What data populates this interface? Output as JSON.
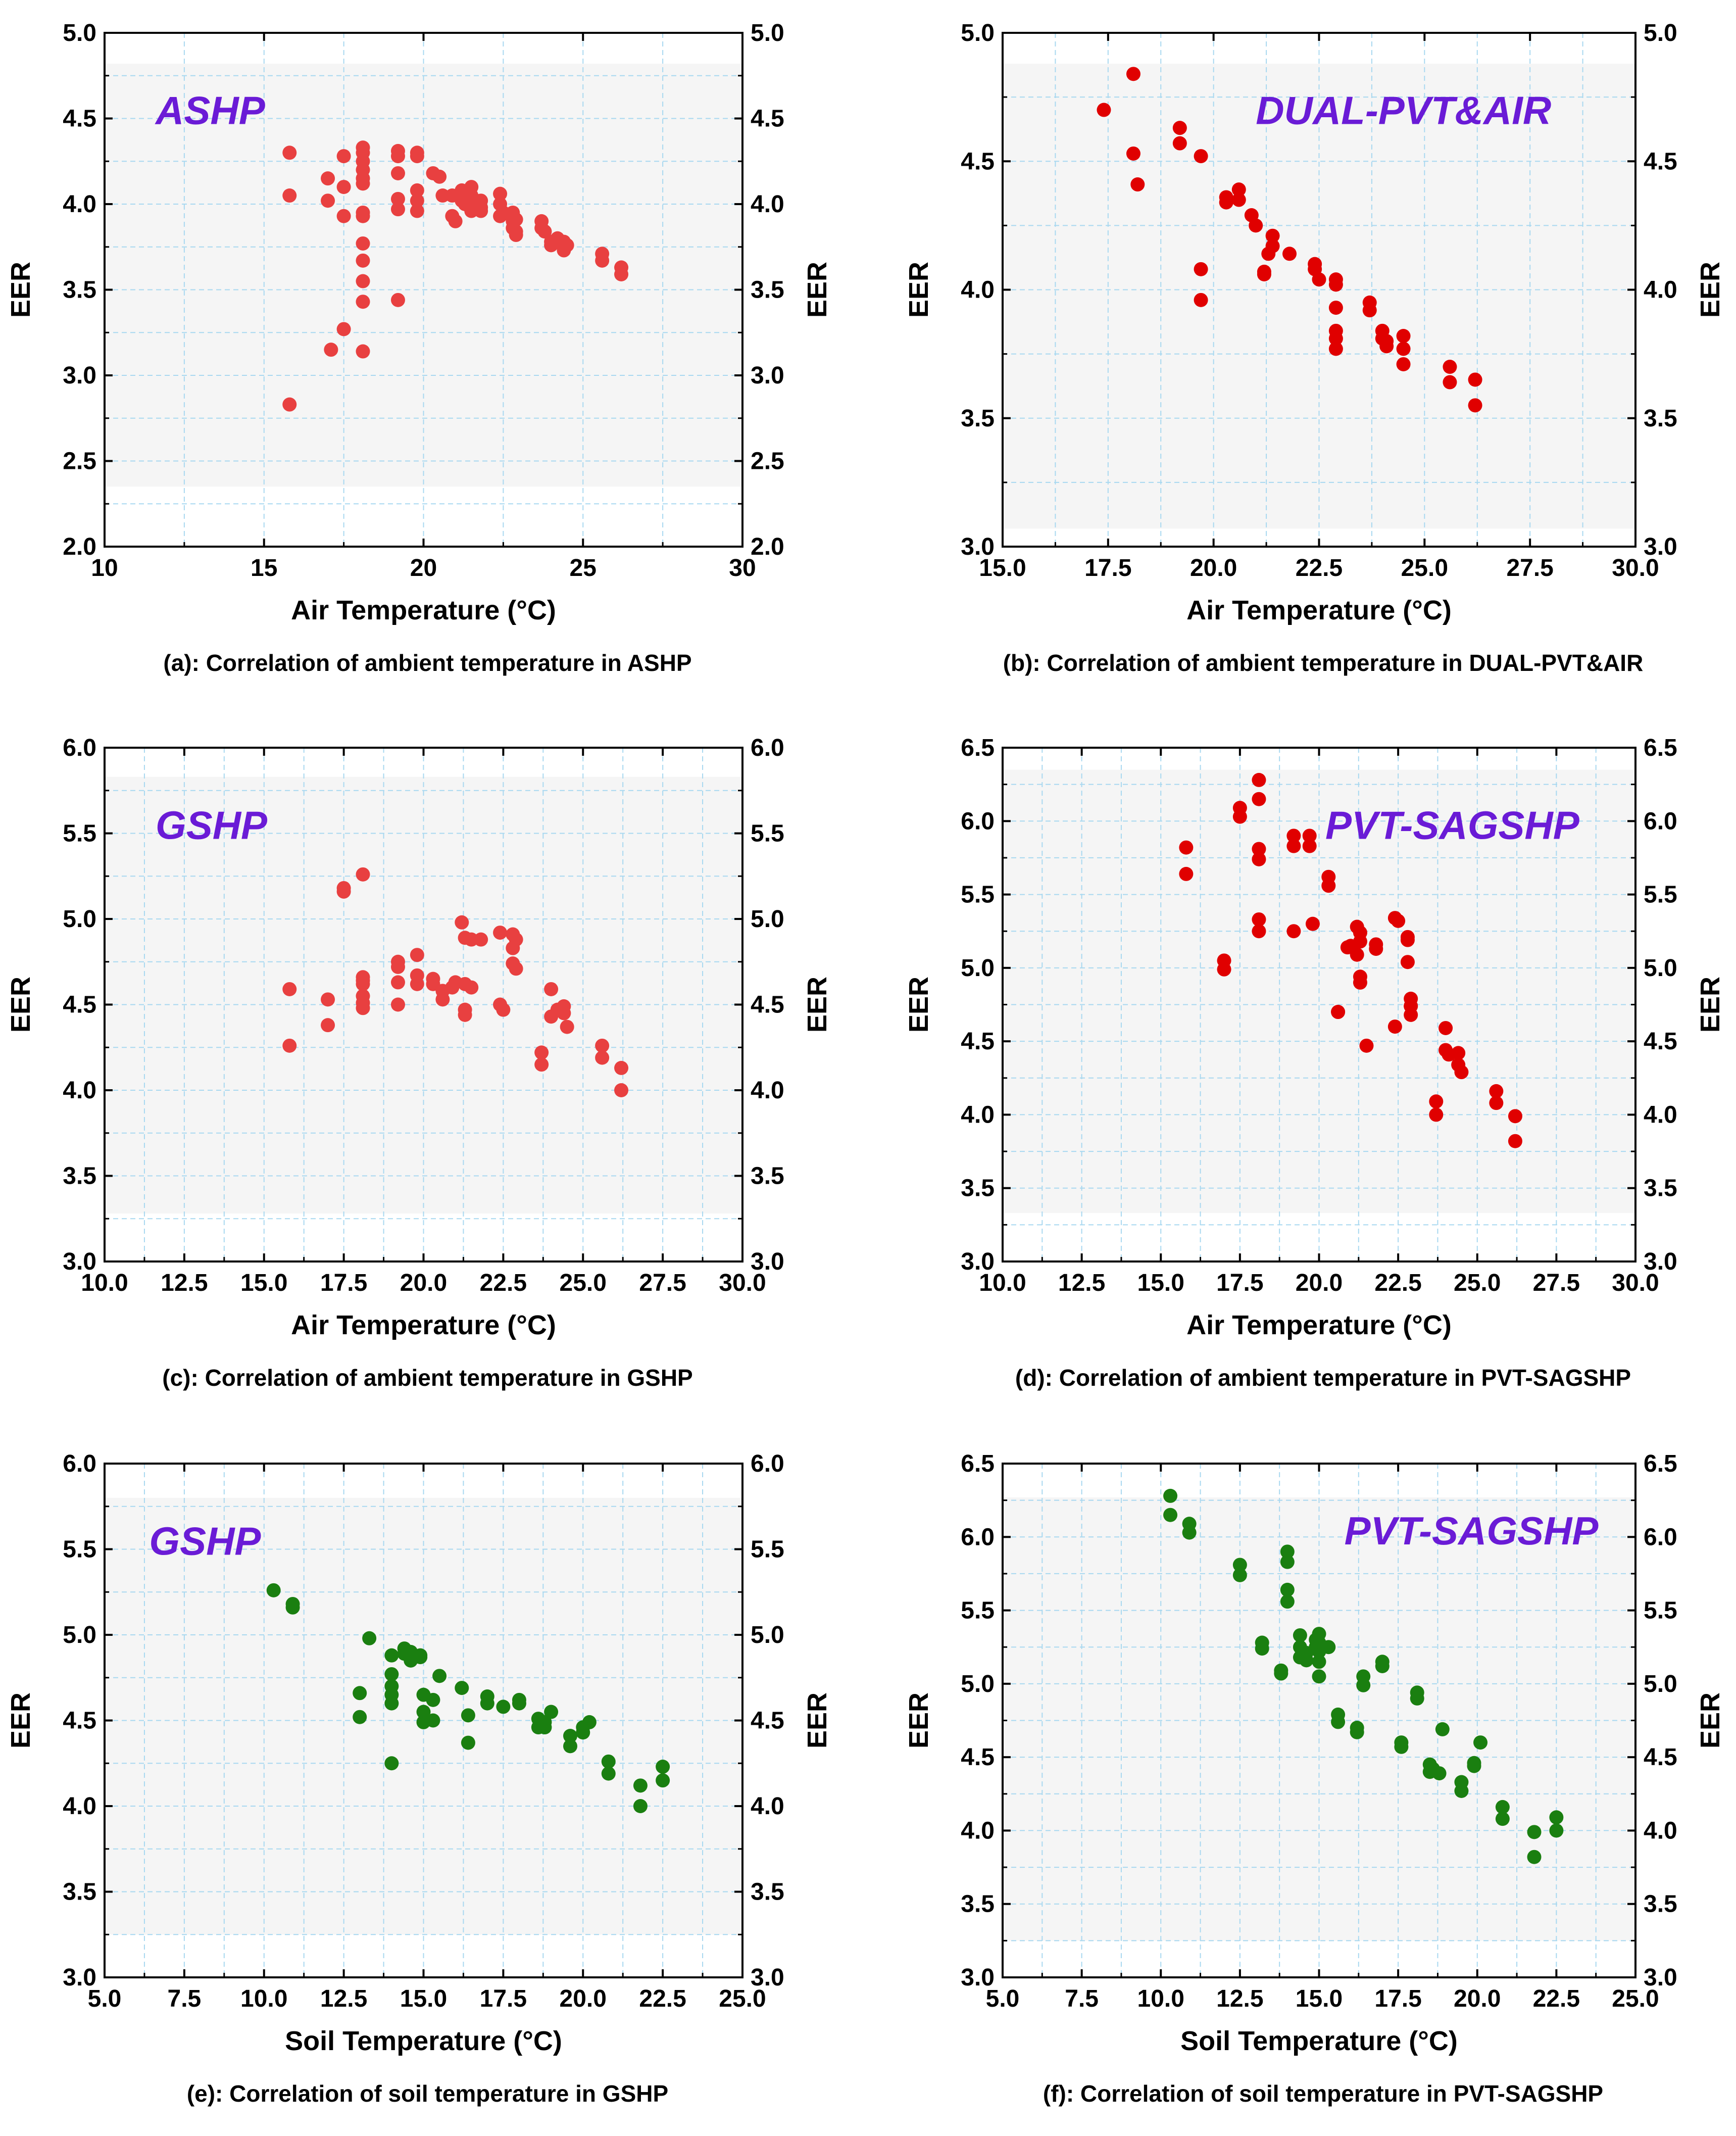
{
  "figure": {
    "colors": {
      "air_points": "#e84040",
      "dual_points": "#e00000",
      "pvt_points": "#e00000",
      "soil_points": "#1a7f10",
      "panel_label": "#6a1bd6",
      "grid": "#a8d8f0",
      "band": "#f5f5f5"
    }
  },
  "chart_data": [
    {
      "id": "a",
      "type": "scatter",
      "panel_label": "ASHP",
      "caption": "(a): Correlation of ambient temperature in ASHP",
      "xlabel": "Air Temperature (°C)",
      "ylabel": "EER",
      "ylabel_right": "EER",
      "xlim": [
        10,
        30
      ],
      "ylim": [
        2.0,
        5.0
      ],
      "xticks": [
        "10",
        "15",
        "20",
        "25",
        "30"
      ],
      "yticks": [
        "2.0",
        "2.5",
        "3.0",
        "3.5",
        "4.0",
        "4.5",
        "5.0"
      ],
      "band": [
        2.35,
        4.82
      ],
      "x": [
        15.8,
        15.8,
        15.8,
        17.0,
        17.0,
        17.1,
        17.5,
        17.5,
        17.5,
        17.5,
        18.1,
        18.1,
        18.1,
        18.1,
        18.1,
        18.1,
        18.1,
        18.1,
        18.1,
        18.1,
        18.1,
        18.1,
        18.1,
        19.2,
        19.2,
        19.2,
        19.2,
        19.2,
        19.2,
        19.8,
        19.8,
        19.8,
        19.8,
        19.8,
        20.3,
        20.5,
        20.6,
        20.9,
        20.9,
        21.0,
        21.2,
        21.2,
        21.3,
        21.3,
        21.5,
        21.5,
        21.5,
        21.5,
        21.8,
        21.8,
        21.8,
        22.4,
        22.4,
        22.4,
        22.5,
        22.8,
        22.8,
        22.8,
        22.9,
        22.9,
        22.9,
        23.7,
        23.7,
        23.8,
        24.0,
        24.0,
        24.1,
        24.2,
        24.4,
        24.4,
        24.4,
        24.5,
        25.6,
        25.6,
        26.2,
        26.2
      ],
      "y": [
        4.3,
        4.05,
        2.83,
        4.15,
        4.02,
        3.15,
        4.28,
        4.1,
        3.93,
        3.27,
        4.33,
        4.3,
        4.25,
        4.15,
        4.12,
        3.95,
        3.77,
        3.67,
        3.55,
        3.43,
        3.14,
        3.93,
        4.2,
        4.31,
        4.28,
        4.18,
        4.03,
        3.97,
        3.44,
        4.3,
        4.28,
        4.08,
        4.02,
        3.96,
        4.18,
        4.16,
        4.05,
        4.05,
        3.93,
        3.9,
        4.08,
        4.02,
        4.0,
        4.05,
        4.1,
        4.05,
        4.0,
        3.96,
        4.02,
        3.98,
        3.96,
        4.06,
        4.0,
        3.93,
        3.95,
        3.95,
        3.9,
        3.86,
        3.84,
        3.91,
        3.82,
        3.9,
        3.86,
        3.84,
        3.78,
        3.76,
        3.78,
        3.8,
        3.78,
        3.75,
        3.73,
        3.76,
        3.71,
        3.67,
        3.63,
        3.59
      ],
      "series_color": "air_points"
    },
    {
      "id": "b",
      "type": "scatter",
      "panel_label": "DUAL-PVT&AIR",
      "caption": "(b): Correlation of ambient temperature in DUAL-PVT&AIR",
      "xlabel": "Air Temperature (°C)",
      "ylabel": "EER",
      "ylabel_right": "EER",
      "xlim": [
        15.0,
        30.0
      ],
      "ylim": [
        3.0,
        5.0
      ],
      "xticks": [
        "15.0",
        "17.5",
        "20.0",
        "22.5",
        "25.0",
        "27.5",
        "30.0"
      ],
      "yticks": [
        "3.0",
        "3.5",
        "4.0",
        "4.5",
        "5.0"
      ],
      "band": [
        3.07,
        4.88
      ],
      "x": [
        17.4,
        18.1,
        18.1,
        18.2,
        19.2,
        19.2,
        19.7,
        19.7,
        19.7,
        20.3,
        20.3,
        20.6,
        20.6,
        20.9,
        21.0,
        21.2,
        21.2,
        21.3,
        21.4,
        21.4,
        21.8,
        22.4,
        22.4,
        22.5,
        22.9,
        22.9,
        22.9,
        22.9,
        22.9,
        22.9,
        23.7,
        23.7,
        24.0,
        24.0,
        24.1,
        24.1,
        24.5,
        24.5,
        24.5,
        25.6,
        25.6,
        26.2,
        26.2
      ],
      "y": [
        4.7,
        4.84,
        4.53,
        4.41,
        4.63,
        4.57,
        4.52,
        4.08,
        3.96,
        4.36,
        4.34,
        4.39,
        4.35,
        4.29,
        4.25,
        4.06,
        4.07,
        4.14,
        4.21,
        4.17,
        4.14,
        4.1,
        4.08,
        4.04,
        4.04,
        4.02,
        3.93,
        3.84,
        3.81,
        3.77,
        3.95,
        3.92,
        3.84,
        3.81,
        3.8,
        3.78,
        3.82,
        3.77,
        3.71,
        3.7,
        3.64,
        3.65,
        3.55
      ],
      "series_color": "dual_points"
    },
    {
      "id": "c",
      "type": "scatter",
      "panel_label": "GSHP",
      "caption": "(c): Correlation of ambient temperature in GSHP",
      "xlabel": "Air Temperature (°C)",
      "ylabel": "EER",
      "ylabel_right": "EER",
      "xlim": [
        10.0,
        30.0
      ],
      "ylim": [
        3.0,
        6.0
      ],
      "xticks": [
        "10.0",
        "12.5",
        "15.0",
        "17.5",
        "20.0",
        "22.5",
        "25.0",
        "27.5",
        "30.0"
      ],
      "yticks": [
        "3.0",
        "3.5",
        "4.0",
        "4.5",
        "5.0",
        "5.5",
        "6.0"
      ],
      "band": [
        3.28,
        5.83
      ],
      "x": [
        15.8,
        15.8,
        17.0,
        17.0,
        17.5,
        17.5,
        18.1,
        18.1,
        18.1,
        18.1,
        18.1,
        18.1,
        18.1,
        19.2,
        19.2,
        19.2,
        19.2,
        19.8,
        19.8,
        19.8,
        20.3,
        20.3,
        20.6,
        20.6,
        20.9,
        21.0,
        21.2,
        21.3,
        21.3,
        21.3,
        21.3,
        21.5,
        21.5,
        21.8,
        22.4,
        22.4,
        22.5,
        22.8,
        22.8,
        22.8,
        22.9,
        22.9,
        23.7,
        23.7,
        24.0,
        24.0,
        24.2,
        24.4,
        24.4,
        24.5,
        25.6,
        25.6,
        26.2,
        26.2
      ],
      "y": [
        4.59,
        4.26,
        4.53,
        4.38,
        5.18,
        5.16,
        5.26,
        4.66,
        4.62,
        4.55,
        4.51,
        4.48,
        4.64,
        4.75,
        4.72,
        4.63,
        4.5,
        4.79,
        4.67,
        4.62,
        4.65,
        4.62,
        4.58,
        4.53,
        4.6,
        4.63,
        4.98,
        4.89,
        4.62,
        4.47,
        4.44,
        4.88,
        4.6,
        4.88,
        4.92,
        4.5,
        4.47,
        4.91,
        4.83,
        4.74,
        4.71,
        4.88,
        4.22,
        4.15,
        4.59,
        4.43,
        4.47,
        4.49,
        4.45,
        4.37,
        4.26,
        4.19,
        4.13,
        4.0
      ],
      "series_color": "air_points"
    },
    {
      "id": "d",
      "type": "scatter",
      "panel_label": "PVT-SAGSHP",
      "caption": "(d): Correlation of ambient temperature in PVT-SAGSHP",
      "xlabel": "Air Temperature (°C)",
      "ylabel": "EER",
      "ylabel_right": "EER",
      "xlim": [
        10.0,
        30.0
      ],
      "ylim": [
        3.0,
        6.5
      ],
      "xticks": [
        "10.0",
        "12.5",
        "15.0",
        "17.5",
        "20.0",
        "22.5",
        "25.0",
        "27.5",
        "30.0"
      ],
      "yticks": [
        "3.0",
        "3.5",
        "4.0",
        "4.5",
        "5.0",
        "5.5",
        "6.0",
        "6.5"
      ],
      "band": [
        3.33,
        6.35
      ],
      "x": [
        15.8,
        15.8,
        17.0,
        17.0,
        17.5,
        17.5,
        18.1,
        18.1,
        18.1,
        18.1,
        18.1,
        18.1,
        19.2,
        19.2,
        19.2,
        19.7,
        19.7,
        19.8,
        20.3,
        20.3,
        20.6,
        20.6,
        20.9,
        21.0,
        21.2,
        21.2,
        21.3,
        21.3,
        21.3,
        21.3,
        21.5,
        21.8,
        21.8,
        22.4,
        22.4,
        22.5,
        22.8,
        22.8,
        22.8,
        22.9,
        22.9,
        22.9,
        22.9,
        23.7,
        23.7,
        24.0,
        24.0,
        24.1,
        24.4,
        24.4,
        24.5,
        25.6,
        25.6,
        26.2,
        26.2
      ],
      "y": [
        5.82,
        5.64,
        5.05,
        4.99,
        6.09,
        6.03,
        6.28,
        6.15,
        5.81,
        5.74,
        5.33,
        5.25,
        5.9,
        5.83,
        5.25,
        5.9,
        5.83,
        5.3,
        5.62,
        5.56,
        4.7,
        4.7,
        5.14,
        5.15,
        5.09,
        5.28,
        5.24,
        5.18,
        4.94,
        4.9,
        4.47,
        5.16,
        5.13,
        5.34,
        4.6,
        5.32,
        5.04,
        5.19,
        5.21,
        4.79,
        4.74,
        4.68,
        4.74,
        4.09,
        4.0,
        4.59,
        4.44,
        4.41,
        4.42,
        4.34,
        4.29,
        4.16,
        4.08,
        3.99,
        3.82
      ],
      "series_color": "pvt_points"
    },
    {
      "id": "e",
      "type": "scatter",
      "panel_label": "GSHP",
      "caption": "(e): Correlation of soil temperature in GSHP",
      "xlabel": "Soil Temperature (°C)",
      "ylabel": "EER",
      "ylabel_right": "EER",
      "xlim": [
        5.0,
        25.0
      ],
      "ylim": [
        3.0,
        6.0
      ],
      "xticks": [
        "5.0",
        "7.5",
        "10.0",
        "12.5",
        "15.0",
        "17.5",
        "20.0",
        "22.5",
        "25.0"
      ],
      "yticks": [
        "3.0",
        "3.5",
        "4.0",
        "4.5",
        "5.0",
        "5.5",
        "6.0"
      ],
      "band": [
        3.25,
        5.8
      ],
      "x": [
        10.3,
        10.9,
        10.9,
        13.0,
        13.0,
        13.3,
        14.0,
        14.0,
        14.0,
        14.0,
        14.0,
        14.0,
        14.4,
        14.4,
        14.6,
        14.6,
        14.9,
        14.9,
        15.0,
        15.0,
        15.0,
        15.3,
        15.3,
        15.5,
        16.2,
        16.4,
        16.4,
        17.0,
        17.0,
        17.5,
        18.0,
        18.0,
        18.6,
        18.6,
        18.8,
        18.8,
        19.0,
        19.6,
        19.6,
        20.0,
        20.0,
        20.2,
        20.8,
        20.8,
        21.8,
        21.8,
        22.5,
        22.5
      ],
      "y": [
        5.26,
        5.18,
        5.16,
        4.66,
        4.52,
        4.98,
        4.88,
        4.77,
        4.7,
        4.65,
        4.6,
        4.25,
        4.92,
        4.89,
        4.9,
        4.85,
        4.88,
        4.87,
        4.65,
        4.55,
        4.49,
        4.62,
        4.5,
        4.76,
        4.69,
        4.53,
        4.37,
        4.64,
        4.6,
        4.58,
        4.62,
        4.6,
        4.51,
        4.46,
        4.49,
        4.46,
        4.55,
        4.41,
        4.35,
        4.46,
        4.43,
        4.49,
        4.26,
        4.19,
        4.12,
        4.0,
        4.23,
        4.15
      ],
      "series_color": "soil_points"
    },
    {
      "id": "f",
      "type": "scatter",
      "panel_label": "PVT-SAGSHP",
      "caption": "(f): Correlation of soil temperature in PVT-SAGSHP",
      "xlabel": "Soil Temperature (°C)",
      "ylabel": "EER",
      "ylabel_right": "EER",
      "xlim": [
        5.0,
        25.0
      ],
      "ylim": [
        3.0,
        6.5
      ],
      "xticks": [
        "5.0",
        "7.5",
        "10.0",
        "12.5",
        "15.0",
        "17.5",
        "20.0",
        "22.5",
        "25.0"
      ],
      "yticks": [
        "3.0",
        "3.5",
        "4.0",
        "4.5",
        "5.0",
        "5.5",
        "6.0",
        "6.5"
      ],
      "band": [
        3.25,
        6.27
      ],
      "x": [
        10.3,
        10.3,
        10.9,
        10.9,
        12.5,
        12.5,
        13.2,
        13.2,
        13.8,
        13.8,
        14.0,
        14.0,
        14.0,
        14.0,
        14.4,
        14.4,
        14.4,
        14.6,
        14.6,
        14.9,
        14.9,
        15.0,
        15.0,
        15.0,
        15.0,
        15.0,
        15.3,
        15.6,
        15.6,
        16.2,
        16.2,
        16.4,
        16.4,
        17.0,
        17.0,
        17.6,
        17.6,
        18.1,
        18.1,
        18.5,
        18.5,
        18.6,
        18.8,
        18.9,
        19.5,
        19.5,
        19.9,
        19.9,
        20.1,
        20.8,
        20.8,
        21.8,
        21.8,
        22.5,
        22.5
      ],
      "y": [
        6.28,
        6.15,
        6.09,
        6.03,
        5.81,
        5.74,
        5.28,
        5.24,
        5.09,
        5.07,
        5.9,
        5.83,
        5.64,
        5.56,
        5.33,
        5.25,
        5.18,
        5.21,
        5.16,
        5.3,
        5.25,
        5.34,
        5.28,
        5.22,
        5.15,
        5.05,
        5.25,
        4.79,
        4.74,
        4.7,
        4.67,
        5.05,
        4.99,
        5.15,
        5.12,
        4.6,
        4.57,
        4.94,
        4.9,
        4.45,
        4.4,
        4.42,
        4.39,
        4.69,
        4.33,
        4.27,
        4.46,
        4.44,
        4.6,
        4.16,
        4.08,
        3.99,
        3.82,
        4.09,
        4.0
      ],
      "series_color": "soil_points"
    }
  ]
}
